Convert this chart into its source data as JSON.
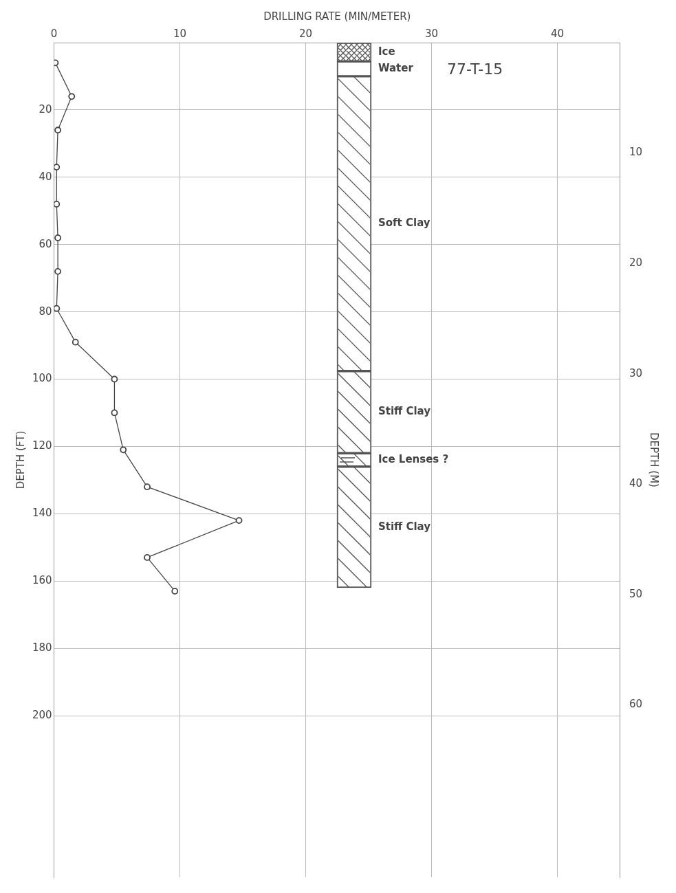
{
  "chart_data": {
    "type": "line",
    "title": "77-T-15",
    "xlabel": "DRILLING RATE (MIN/METER)",
    "ylabel": "DEPTH (FT)",
    "y2label": "DEPTH (M)",
    "xlim": [
      0,
      45
    ],
    "xticks": [
      0,
      10,
      20,
      30,
      40
    ],
    "ylim": [
      248,
      0
    ],
    "yticks": [
      20,
      40,
      60,
      80,
      100,
      120,
      140,
      160,
      180,
      200
    ],
    "y2lim": [
      75.6,
      0
    ],
    "y2ticks": [
      10,
      20,
      30,
      40,
      50,
      60
    ],
    "series": [
      {
        "color": "#444444",
        "x": [
          0.1,
          1.4,
          0.3,
          0.2,
          0.2,
          0.3,
          0.3,
          0.2,
          1.7,
          4.8,
          4.8,
          5.5,
          7.4,
          14.7,
          7.4,
          9.6
        ],
        "values": [
          6,
          16,
          26,
          37,
          48,
          58,
          68,
          79,
          89,
          100,
          110,
          121,
          132,
          142,
          153,
          163
        ]
      },
      {
        "type": "bar",
        "name": "Ice",
        "color": "#ffffff",
        "x": [
          23.85
        ],
        "base": [
          0
        ],
        "values": [
          5.6
        ]
      },
      {
        "type": "bar",
        "name": "Water",
        "color": "#ffffff",
        "x": [
          23.85
        ],
        "base": [
          5.6
        ],
        "values": [
          4.4
        ]
      },
      {
        "type": "bar",
        "name": "Soft Clay",
        "color": "#ffffff",
        "x": [
          23.85
        ],
        "base": [
          10
        ],
        "values": [
          87.6
        ]
      },
      {
        "type": "bar",
        "name": "Stiff Clay",
        "color": "#ffffff",
        "x": [
          23.85
        ],
        "base": [
          97.6
        ],
        "values": [
          24.4
        ]
      },
      {
        "type": "bar",
        "name": "Ice Lenses ?",
        "color": "#ffffff",
        "x": [
          23.85
        ],
        "base": [
          122
        ],
        "values": [
          4
        ]
      },
      {
        "type": "bar",
        "name": "Stiff Clay",
        "color": "#ffffff",
        "x": [
          23.85
        ],
        "base": [
          126
        ],
        "values": [
          36
        ]
      }
    ],
    "grid": true,
    "legend": false,
    "marker": "circle",
    "line_style": "solid"
  }
}
